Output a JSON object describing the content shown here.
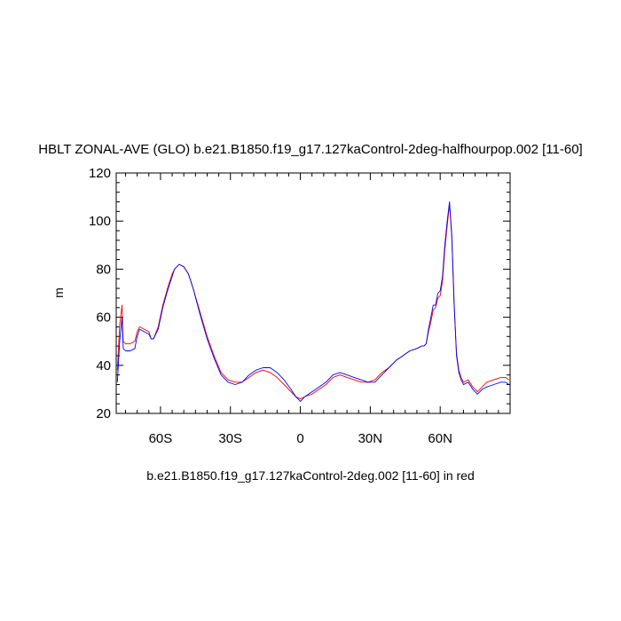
{
  "chart_data": {
    "type": "line",
    "title": "HBLT ZONAL-AVE (GLO) b.e21.B1850.f19_g17.127kaControl-2deg-halfhourpop.002 [11-60]",
    "xlabel": "b.e21.B1850.f19_g17.127kaControl-2deg.002 [11-60] in red",
    "ylabel": "m",
    "xlim": [
      -79,
      90
    ],
    "ylim": [
      20,
      120
    ],
    "x_ticks": [
      {
        "value": -60,
        "label": "60S"
      },
      {
        "value": -30,
        "label": "30S"
      },
      {
        "value": 0,
        "label": "0"
      },
      {
        "value": 30,
        "label": "30N"
      },
      {
        "value": 60,
        "label": "60N"
      }
    ],
    "y_ticks": [
      20,
      40,
      60,
      80,
      100,
      120
    ],
    "grid": false,
    "series": [
      {
        "color": "#ff0000",
        "x": [
          -78.5,
          -77.5,
          -76.5,
          -76,
          -75,
          -73,
          -71,
          -70,
          -69,
          -67,
          -65,
          -64,
          -63,
          -61,
          -59,
          -57,
          -56,
          -55,
          -54,
          -52,
          -50,
          -48,
          -46,
          -43,
          -40,
          -37,
          -34,
          -31,
          -28,
          -25,
          -22,
          -19,
          -16,
          -13,
          -10,
          -7,
          -4,
          -2,
          0,
          2,
          5,
          8,
          11,
          14,
          17,
          20,
          23,
          26,
          29,
          32,
          35,
          38,
          41,
          44,
          47,
          50,
          52,
          53,
          54,
          55,
          56,
          57,
          58,
          59,
          60,
          61,
          62,
          63,
          64,
          65,
          66,
          67,
          68,
          69,
          70,
          72,
          74,
          76,
          78,
          80,
          83,
          86,
          88,
          89.5
        ],
        "y": [
          38,
          57,
          65,
          50,
          49,
          49,
          50,
          54,
          56,
          55,
          54,
          51,
          51,
          56,
          65,
          72,
          75,
          78,
          80,
          82,
          81,
          78,
          72,
          62,
          52,
          44,
          37,
          34,
          33,
          33,
          35,
          37,
          38,
          37,
          35,
          32,
          29,
          27,
          26,
          27,
          28,
          30,
          32,
          35,
          36,
          35,
          34,
          33,
          33,
          34,
          37,
          39,
          42,
          44,
          46,
          47,
          48,
          48,
          49,
          54,
          58,
          63,
          64,
          68,
          69,
          75,
          88,
          98,
          107,
          93,
          65,
          45,
          38,
          35,
          33,
          34,
          31,
          29,
          31,
          33,
          34,
          35,
          35,
          34
        ]
      },
      {
        "color": "#0000ff",
        "x": [
          -78.5,
          -77.5,
          -76.5,
          -76,
          -75,
          -73,
          -71,
          -70,
          -69,
          -67,
          -65,
          -64,
          -63,
          -61,
          -59,
          -57,
          -56,
          -55,
          -54,
          -52,
          -50,
          -48,
          -46,
          -43,
          -40,
          -37,
          -34,
          -31,
          -28,
          -25,
          -22,
          -19,
          -16,
          -13,
          -10,
          -7,
          -4,
          -2,
          0,
          2,
          5,
          8,
          11,
          14,
          17,
          20,
          23,
          26,
          29,
          32,
          35,
          38,
          41,
          44,
          47,
          50,
          52,
          53,
          54,
          55,
          56,
          57,
          58,
          59,
          60,
          61,
          62,
          63,
          64,
          65,
          66,
          67,
          68,
          69,
          70,
          72,
          74,
          76,
          78,
          80,
          83,
          86,
          88,
          89.5
        ],
        "y": [
          33,
          50,
          60,
          47,
          46,
          46,
          47,
          52,
          55,
          54,
          53,
          51,
          51,
          55,
          64,
          71,
          74,
          77,
          80,
          82,
          81,
          78,
          72,
          61,
          51,
          43,
          36,
          33,
          32,
          33,
          36,
          38,
          39,
          39,
          37,
          34,
          30,
          27,
          25,
          27,
          29,
          31,
          33,
          36,
          37,
          36,
          35,
          34,
          33,
          33,
          36,
          39,
          42,
          44,
          46,
          47,
          48,
          48,
          49,
          55,
          60,
          65,
          65,
          70,
          71,
          77,
          90,
          100,
          108,
          94,
          66,
          44,
          37,
          34,
          32,
          33,
          30,
          28,
          30,
          31,
          32,
          33,
          33,
          32
        ]
      }
    ]
  }
}
